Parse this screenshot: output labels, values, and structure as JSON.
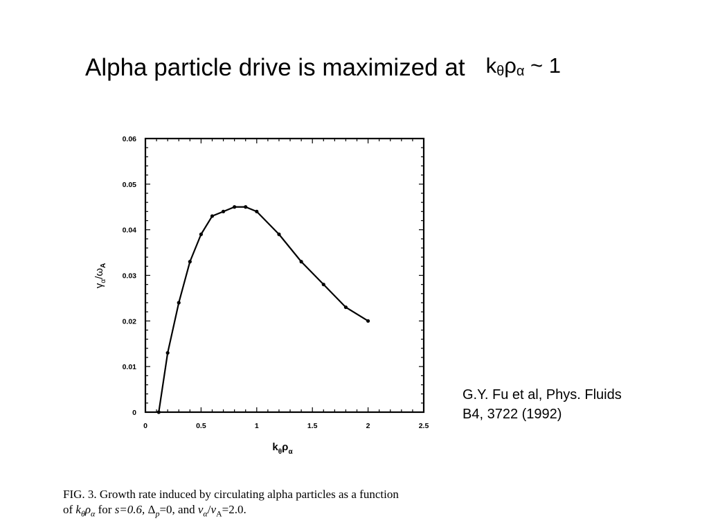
{
  "slide": {
    "title_text": "Alpha particle drive is maximized at",
    "title_symbol": {
      "k": "k",
      "theta": "θ",
      "rho": "ρ",
      "alpha": "α",
      "suffix": " ~ 1"
    }
  },
  "citation": {
    "line1": "G.Y. Fu et al, Phys.  Fluids",
    "line2": "B4, 3722 (1992)"
  },
  "caption": {
    "fig_label": "FIG. 3.",
    "line1": " Growth rate induced by circulating alpha particles as a function",
    "line2_prefix": "of ",
    "k": "k",
    "theta": "θ",
    "rho": "ρ",
    "alpha": "α",
    "line2_mid": " for ",
    "s_eq": "s=0.6, ",
    "delta": "Δ",
    "p": "p",
    "delta_eq": "=0, and ",
    "v": "v",
    "A": "A",
    "v_ratio_eq": "=2.0."
  },
  "chart_data": {
    "type": "line",
    "xlabel": {
      "main": "k",
      "sub1": "θ",
      "main2": "ρ",
      "sub2": "α"
    },
    "ylabel": {
      "main": "γ",
      "sub1": "α",
      "slash": "/ω",
      "sub2": "A"
    },
    "xlim": [
      0,
      2.5
    ],
    "ylim": [
      0,
      0.06
    ],
    "x_ticks": [
      {
        "value": 0,
        "label": "0"
      },
      {
        "value": 0.5,
        "label": "0.5"
      },
      {
        "value": 1,
        "label": "1"
      },
      {
        "value": 1.5,
        "label": "1.5"
      },
      {
        "value": 2,
        "label": "2"
      },
      {
        "value": 2.5,
        "label": "2.5"
      }
    ],
    "y_ticks": [
      {
        "value": 0,
        "label": "0"
      },
      {
        "value": 0.01,
        "label": "0.01"
      },
      {
        "value": 0.02,
        "label": "0.02"
      },
      {
        "value": 0.03,
        "label": "0.03"
      },
      {
        "value": 0.04,
        "label": "0.04"
      },
      {
        "value": 0.05,
        "label": "0.05"
      },
      {
        "value": 0.06,
        "label": "0.06"
      }
    ],
    "grid": false,
    "series": [
      {
        "x": [
          0.12,
          0.2,
          0.3,
          0.4,
          0.5,
          0.6,
          0.7,
          0.8,
          0.9,
          1.0,
          1.2,
          1.4,
          1.6,
          1.8,
          2.0
        ],
        "y": [
          0.0,
          0.013,
          0.024,
          0.033,
          0.039,
          0.043,
          0.044,
          0.045,
          0.045,
          0.044,
          0.039,
          0.033,
          0.028,
          0.023,
          0.02
        ]
      }
    ],
    "colors": {
      "line": "#000000",
      "frame": "#000000"
    }
  }
}
